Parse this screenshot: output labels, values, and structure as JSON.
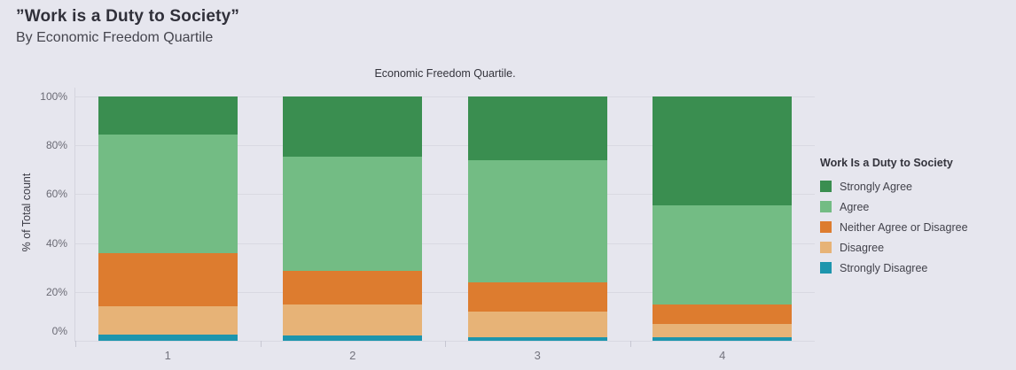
{
  "page": {
    "title": "”Work is a Duty to Society”",
    "subtitle": "By Economic Freedom Quartile"
  },
  "colors": {
    "background": "#e6e6ee",
    "gridline": "#d9d9e2",
    "axis_line": "#d4d4de",
    "title_text": "#30303a",
    "subtitle_text": "#45454e",
    "tick_text": "#6a6a74",
    "strongly_agree": "#3a8e50",
    "agree": "#73bc84",
    "neither_agree_or_disagree": "#dd7c2f",
    "disagree": "#e7b377",
    "strongly_disagree": "#1d95ad"
  },
  "chart_data": {
    "type": "bar",
    "subtype": "stacked-100-percent",
    "column_header": "Economic Freedom Quartile.",
    "ylabel": "% of Total count",
    "xlabel": "",
    "categories": [
      "1",
      "2",
      "3",
      "4"
    ],
    "ylim": [
      0,
      100
    ],
    "grid": true,
    "y_ticks": [
      {
        "label": "0%",
        "value": 0
      },
      {
        "label": "20%",
        "value": 20
      },
      {
        "label": "40%",
        "value": 40
      },
      {
        "label": "60%",
        "value": 60
      },
      {
        "label": "80%",
        "value": 80
      },
      {
        "label": "100%",
        "value": 100
      }
    ],
    "legend_title": "Work Is a Duty to Society",
    "legend_position": "right",
    "series": [
      {
        "name": "Strongly Agree",
        "color": "#3a8e50",
        "values": [
          15.5,
          24.5,
          26,
          44.5
        ]
      },
      {
        "name": "Agree",
        "color": "#73bc84",
        "values": [
          48.5,
          47,
          50,
          40.5
        ]
      },
      {
        "name": "Neither Agree or Disagree",
        "color": "#dd7c2f",
        "values": [
          22,
          13.5,
          12,
          8
        ]
      },
      {
        "name": "Disagree",
        "color": "#e7b377",
        "values": [
          11.5,
          13,
          10.5,
          5.5
        ]
      },
      {
        "name": "Strongly Disagree",
        "color": "#1d95ad",
        "values": [
          2.5,
          2,
          1.5,
          1.5
        ]
      }
    ]
  }
}
